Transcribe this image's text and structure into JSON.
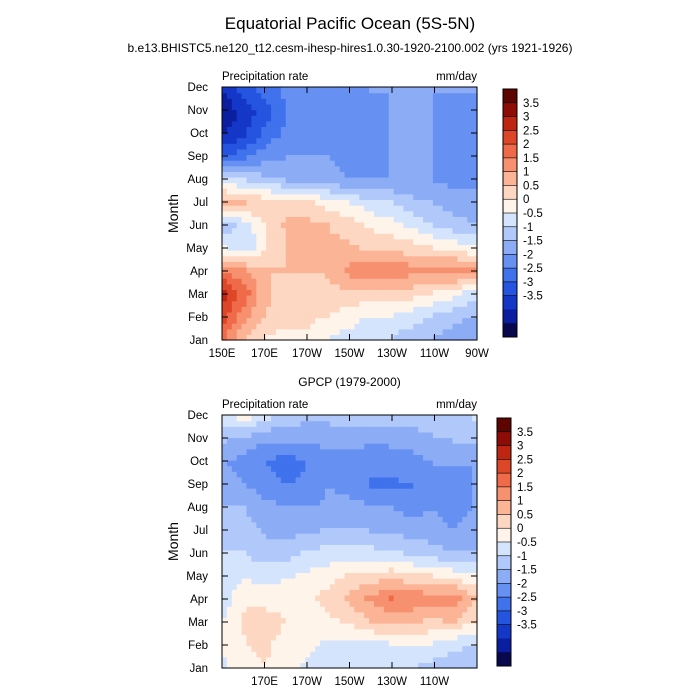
{
  "figure": {
    "title": "Equatorial Pacific Ocean (5S-5N)",
    "subtitle": "b.e13.BHISTC5.ne120_t12.cesm-ihesp-hires1.0.30-1920-2100.002 (yrs 1921-1926)"
  },
  "colors": [
    "#08084f",
    "#0c1ea0",
    "#1537c8",
    "#2554e0",
    "#3f72ec",
    "#6690f2",
    "#8cadf6",
    "#b1c9fa",
    "#d5e4fd",
    "#fff4ea",
    "#fdd7c2",
    "#fbb496",
    "#f7906e",
    "#ef6a49",
    "#de4628",
    "#bf2612",
    "#8d0c05",
    "#5e0502"
  ],
  "chart_data": [
    {
      "type": "heatmap",
      "title": "",
      "left_label": "Precipitation rate",
      "right_label": "mm/day",
      "ylabel": "Month",
      "months": [
        "Jan",
        "Feb",
        "Mar",
        "Apr",
        "May",
        "Jun",
        "Jul",
        "Aug",
        "Sep",
        "Oct",
        "Nov",
        "Dec"
      ],
      "xlim": [
        150,
        270
      ],
      "x_ticks": [
        150,
        170,
        190,
        210,
        230,
        250,
        270
      ],
      "x_tick_labels": [
        "150E",
        "170E",
        "170W",
        "150W",
        "130W",
        "110W",
        "90W"
      ],
      "levels": [
        -3.5,
        -3,
        -2.5,
        -2,
        -1.5,
        -1,
        -0.5,
        0,
        0.5,
        1,
        1.5,
        2,
        2.5,
        3,
        3.5
      ],
      "colorbar_labels": [
        "3.5",
        "3",
        "2.5",
        "2",
        "1.5",
        "1",
        "0.5",
        "0",
        "-0.5",
        "-1",
        "-1.5",
        "-2",
        "-2.5",
        "-3",
        "-3.5"
      ],
      "lon": [
        150,
        160,
        170,
        180,
        190,
        200,
        210,
        220,
        230,
        240,
        250,
        260,
        270
      ],
      "values": [
        [
          2.5,
          1.5,
          1.0,
          0.8,
          0.8,
          0.5,
          0.3,
          0.0,
          0.0,
          -0.3,
          -0.5,
          -0.8,
          -1.0
        ],
        [
          3.2,
          2.2,
          1.5,
          1.2,
          1.2,
          1.0,
          0.8,
          0.5,
          0.5,
          0.3,
          0.0,
          -0.3,
          -0.5
        ],
        [
          3.7,
          2.7,
          1.6,
          1.3,
          1.2,
          1.3,
          1.4,
          1.3,
          1.4,
          1.3,
          1.0,
          0.7,
          0.3
        ],
        [
          2.4,
          2.0,
          1.5,
          1.5,
          1.5,
          1.6,
          2.2,
          2.3,
          2.4,
          2.2,
          2.3,
          2.4,
          2.0
        ],
        [
          0.5,
          0.0,
          1.0,
          1.5,
          1.5,
          1.6,
          1.6,
          1.4,
          1.3,
          1.2,
          1.0,
          0.8,
          0.5
        ],
        [
          -0.3,
          0.2,
          1.1,
          1.6,
          1.7,
          1.5,
          1.3,
          0.9,
          0.7,
          0.4,
          0.0,
          -0.3,
          -0.5
        ],
        [
          1.8,
          1.5,
          1.4,
          1.3,
          1.1,
          0.8,
          0.5,
          0.2,
          0.0,
          -0.3,
          -0.5,
          -0.7,
          -0.8
        ],
        [
          0.3,
          0.0,
          -0.3,
          -0.5,
          -0.8,
          -0.8,
          -1.0,
          -1.0,
          -1.0,
          -1.0,
          -1.0,
          -1.2,
          -1.2
        ],
        [
          -2.0,
          -1.5,
          -1.2,
          -1.0,
          -1.0,
          -1.0,
          -1.2,
          -1.2,
          -1.0,
          -1.0,
          -1.0,
          -1.2,
          -1.3
        ],
        [
          -3.0,
          -2.5,
          -1.8,
          -1.3,
          -1.2,
          -1.3,
          -1.5,
          -1.2,
          -1.0,
          -1.0,
          -1.0,
          -1.2,
          -1.3
        ],
        [
          -3.4,
          -2.8,
          -2.2,
          -1.5,
          -1.3,
          -1.2,
          -1.5,
          -1.2,
          -1.0,
          -1.0,
          -1.0,
          -1.1,
          -1.2
        ],
        [
          -3.0,
          -2.2,
          -1.8,
          -1.3,
          -1.2,
          -1.0,
          -1.2,
          -1.0,
          -1.0,
          -1.0,
          -1.0,
          -1.0,
          -1.0
        ]
      ]
    },
    {
      "type": "heatmap",
      "title": "GPCP (1979-2000)",
      "left_label": "Precipitation rate",
      "right_label": "mm/day",
      "ylabel": "Month",
      "months": [
        "Jan",
        "Feb",
        "Mar",
        "Apr",
        "May",
        "Jun",
        "Jul",
        "Aug",
        "Sep",
        "Oct",
        "Nov",
        "Dec"
      ],
      "xlim": [
        150,
        270
      ],
      "x_ticks": [
        170,
        190,
        210,
        230,
        250
      ],
      "x_tick_labels": [
        "170E",
        "170W",
        "150W",
        "130W",
        "110W"
      ],
      "levels": [
        -3.5,
        -3,
        -2.5,
        -2,
        -1.5,
        -1,
        -0.5,
        0,
        0.5,
        1,
        1.5,
        2,
        2.5,
        3,
        3.5
      ],
      "colorbar_labels": [
        "3.5",
        "3",
        "2.5",
        "2",
        "1.5",
        "1",
        "0.5",
        "0",
        "-0.5",
        "-1",
        "-1.5",
        "-2",
        "-2.5",
        "-3",
        "-3.5"
      ],
      "lon": [
        150,
        160,
        170,
        180,
        190,
        200,
        210,
        220,
        230,
        240,
        250,
        260,
        270
      ],
      "values": [
        [
          0.4,
          0.9,
          1.0,
          0.7,
          0.4,
          0.2,
          0.0,
          0.1,
          0.2,
          0.1,
          -0.2,
          -0.3,
          -0.5
        ],
        [
          0.6,
          1.0,
          1.1,
          0.8,
          0.6,
          0.4,
          0.3,
          0.4,
          0.5,
          0.6,
          0.5,
          0.2,
          0.0
        ],
        [
          0.5,
          1.1,
          1.2,
          1.0,
          0.8,
          0.9,
          1.1,
          1.5,
          1.8,
          1.6,
          1.4,
          1.6,
          1.0
        ],
        [
          0.3,
          0.9,
          0.8,
          0.9,
          0.9,
          1.2,
          1.6,
          2.1,
          2.5,
          2.4,
          2.2,
          2.4,
          1.5
        ],
        [
          0.2,
          0.4,
          0.3,
          0.4,
          0.6,
          0.8,
          1.1,
          1.2,
          1.3,
          1.1,
          1.0,
          0.8,
          0.5
        ],
        [
          0.0,
          0.0,
          -0.3,
          -0.2,
          0.1,
          0.2,
          0.3,
          0.2,
          0.1,
          -0.1,
          -0.3,
          -0.5,
          -0.5
        ],
        [
          -0.2,
          -0.3,
          -0.6,
          -0.7,
          -0.6,
          -0.4,
          -0.4,
          -0.5,
          -0.6,
          -0.7,
          -0.8,
          -1.0,
          -0.8
        ],
        [
          -0.5,
          -0.5,
          -0.8,
          -1.0,
          -1.0,
          -0.9,
          -0.8,
          -0.9,
          -1.0,
          -1.2,
          -1.0,
          -1.2,
          -1.0
        ],
        [
          -0.8,
          -1.0,
          -1.3,
          -1.5,
          -1.3,
          -1.0,
          -1.2,
          -1.5,
          -1.6,
          -1.5,
          -1.4,
          -1.2,
          -1.0
        ],
        [
          -1.0,
          -1.2,
          -1.5,
          -1.8,
          -1.5,
          -1.2,
          -1.3,
          -1.5,
          -1.3,
          -1.2,
          -1.0,
          -1.0,
          -1.0
        ],
        [
          -0.5,
          -0.7,
          -1.0,
          -1.0,
          -1.0,
          -0.8,
          -0.8,
          -0.9,
          -0.9,
          -0.8,
          -0.6,
          -0.5,
          -0.5
        ],
        [
          0.3,
          0.6,
          0.1,
          -0.2,
          -0.4,
          -0.4,
          -0.4,
          -0.3,
          -0.3,
          -0.3,
          -0.2,
          -0.1,
          0.0
        ]
      ]
    }
  ]
}
